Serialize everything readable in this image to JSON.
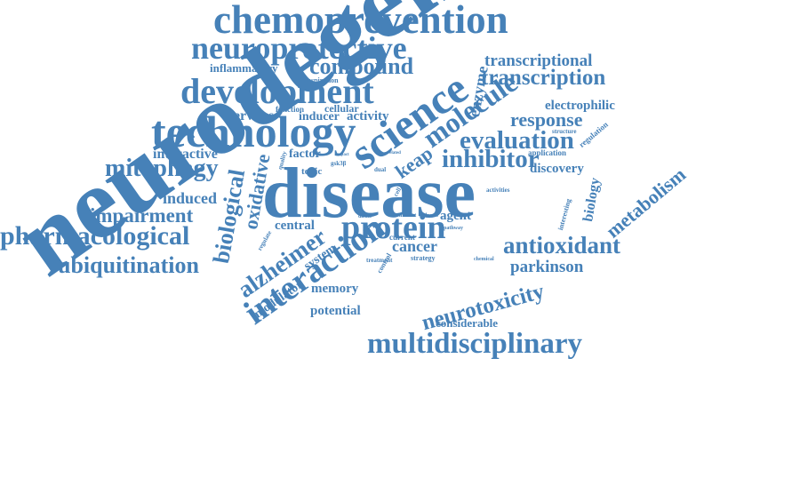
{
  "color": "#4681b8",
  "words": {
    "neurodegenerative": "neurodegenerative",
    "disease": "disease",
    "chemoprevention": "chemoprevention",
    "neuroprotective": "neuroprotective",
    "compound": "compound",
    "inflammatory": "inflammatory",
    "respiration": "respiration",
    "development": "development",
    "science": "science",
    "enzyme": "enzyme",
    "transcriptional": "transcriptional",
    "transcription": "transcription",
    "technology": "technology",
    "nervous": "nervous",
    "function": "function",
    "inducer": "inducer",
    "cellular": "cellular",
    "activity": "activity",
    "molecule": "molecule",
    "response": "response",
    "electrophilic": "electrophilic",
    "regulation": "regulation",
    "evaluation": "evaluation",
    "interactive": "interactive",
    "mitophagy": "mitophagy",
    "factor": "factor",
    "keap": "keap",
    "inhibitor": "inhibitor",
    "application": "application",
    "discovery": "discovery",
    "metabolism": "metabolism",
    "biology": "biology",
    "oxidative": "oxidative",
    "biological": "biological",
    "induced": "induced",
    "impairment": "impairment",
    "pharmacological": "pharmacological",
    "ubiquitination": "ubiquitination",
    "alzheimer": "alzheimer",
    "central": "central",
    "protein": "protein",
    "agent": "agent",
    "antioxidant": "antioxidant",
    "cancer": "cancer",
    "parkinson": "parkinson",
    "interaction": "interaction",
    "system": "system",
    "modulator": "modulator",
    "memory": "memory",
    "potential": "potential",
    "neurotoxicity": "neurotoxicity",
    "considerable": "considerable",
    "multidisciplinary": "multidisciplinary",
    "topic": "topic",
    "quality": "quality",
    "gsk3b": "gsk3β",
    "impact": "impact",
    "dual": "dual",
    "structure": "structure",
    "related": "related",
    "interest": "interest",
    "classes": "classes",
    "activities": "activities",
    "interesting": "interesting",
    "chemical": "chemical",
    "strategy": "strategy",
    "treatment": "treatment",
    "current": "current",
    "pathway": "pathway",
    "direct": "direct",
    "control": "control",
    "regulate": "regulate",
    "cell": "cell"
  }
}
